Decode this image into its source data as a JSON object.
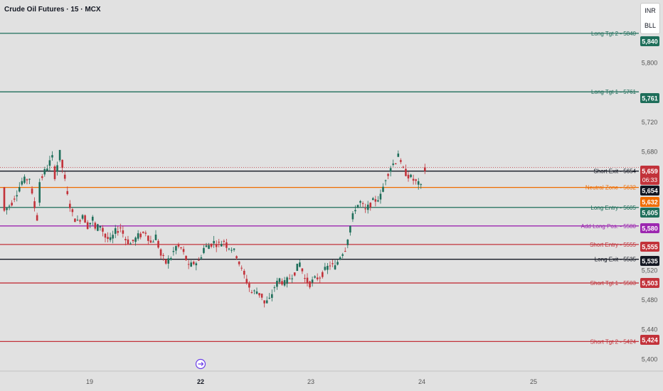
{
  "header": {
    "title": "Crude Oil Futures · 15 · MCX"
  },
  "currency_box": {
    "line1": "INR",
    "line2": "BLL"
  },
  "colors": {
    "up": "#1e6e5a",
    "down": "#c2323a",
    "background": "#e1e1e1"
  },
  "chart_data": {
    "type": "candlestick",
    "title": "Crude Oil Futures · 15 · MCX",
    "ylim": [
      5385,
      5885
    ],
    "y_ticks": [
      "5,400",
      "5,440",
      "5,480",
      "5,520",
      "5,680",
      "5,720",
      "5,800"
    ],
    "x_ticks": [
      "19",
      "22",
      "23",
      "24",
      "25"
    ],
    "x_ticks_bold": [
      "22"
    ],
    "price_path": [
      [
        0,
        5600
      ],
      [
        3,
        5612
      ],
      [
        7,
        5640
      ],
      [
        10,
        5645
      ],
      [
        11,
        5620
      ],
      [
        13,
        5590
      ],
      [
        14,
        5640
      ],
      [
        17,
        5660
      ],
      [
        19,
        5672
      ],
      [
        20,
        5648
      ],
      [
        22,
        5678
      ],
      [
        24,
        5640
      ],
      [
        25,
        5620
      ],
      [
        27,
        5595
      ],
      [
        29,
        5585
      ],
      [
        31,
        5596
      ],
      [
        33,
        5580
      ],
      [
        35,
        5590
      ],
      [
        36,
        5575
      ],
      [
        38,
        5582
      ],
      [
        40,
        5565
      ],
      [
        42,
        5560
      ],
      [
        44,
        5572
      ],
      [
        46,
        5578
      ],
      [
        48,
        5562
      ],
      [
        50,
        5556
      ],
      [
        53,
        5566
      ],
      [
        56,
        5572
      ],
      [
        58,
        5557
      ],
      [
        60,
        5566
      ],
      [
        62,
        5540
      ],
      [
        64,
        5530
      ],
      [
        66,
        5538
      ],
      [
        68,
        5552
      ],
      [
        70,
        5550
      ],
      [
        72,
        5535
      ],
      [
        73,
        5524
      ],
      [
        75,
        5530
      ],
      [
        77,
        5532
      ],
      [
        79,
        5550
      ],
      [
        83,
        5558
      ],
      [
        85,
        5555
      ],
      [
        87,
        5560
      ],
      [
        88,
        5554
      ],
      [
        90,
        5550
      ],
      [
        92,
        5540
      ],
      [
        94,
        5520
      ],
      [
        96,
        5505
      ],
      [
        98,
        5490
      ],
      [
        100,
        5492
      ],
      [
        102,
        5485
      ],
      [
        103,
        5475
      ],
      [
        105,
        5480
      ],
      [
        107,
        5498
      ],
      [
        109,
        5508
      ],
      [
        111,
        5502
      ],
      [
        113,
        5510
      ],
      [
        115,
        5518
      ],
      [
        117,
        5530
      ],
      [
        119,
        5508
      ],
      [
        121,
        5502
      ],
      [
        123,
        5508
      ],
      [
        125,
        5512
      ],
      [
        127,
        5520
      ],
      [
        129,
        5528
      ],
      [
        131,
        5524
      ],
      [
        133,
        5540
      ],
      [
        135,
        5550
      ],
      [
        137,
        5580
      ],
      [
        139,
        5605
      ],
      [
        141,
        5612
      ],
      [
        143,
        5600
      ],
      [
        145,
        5610
      ],
      [
        147,
        5615
      ],
      [
        149,
        5620
      ],
      [
        151,
        5645
      ],
      [
        153,
        5660
      ],
      [
        155,
        5668
      ],
      [
        156,
        5680
      ],
      [
        157,
        5662
      ],
      [
        158,
        5655
      ],
      [
        160,
        5648
      ],
      [
        162,
        5642
      ],
      [
        164,
        5636
      ],
      [
        165,
        5632
      ]
    ],
    "last_bar": {
      "x": 166,
      "open": 5654,
      "close": 5659,
      "high": 5664,
      "low": 5650
    },
    "levels": [
      {
        "price": 5840,
        "label": "Long Tgt 2 - 5840",
        "tag": "5,840",
        "color": "#1e6e5a",
        "text_color": "#1e6e5a",
        "tag_text": "#ffffff"
      },
      {
        "price": 5761,
        "label": "Long Tgt 1 - 5761",
        "tag": "5,761",
        "color": "#1e6e5a",
        "text_color": "#1e6e5a",
        "tag_text": "#ffffff"
      },
      {
        "price": 5654,
        "label": "Short Exit - 5654",
        "tag": "5,654",
        "color": "#131722",
        "text_color": "#131722",
        "tag_text": "#ffffff"
      },
      {
        "price": 5632,
        "label": "Neutral Zone - 5632",
        "tag": "5,632",
        "color": "#ef6c00",
        "text_color": "#ef6c00",
        "tag_text": "#ffffff"
      },
      {
        "price": 5605,
        "label": "Long Entry - 5605",
        "tag": "5,605",
        "color": "#1e6e5a",
        "text_color": "#1e6e5a",
        "tag_text": "#ffffff"
      },
      {
        "price": 5580,
        "label": "Add Long Pos. - 5580",
        "tag": "5,580",
        "color": "#9c27b0",
        "text_color": "#9c27b0",
        "tag_text": "#ffffff"
      },
      {
        "price": 5555,
        "label": "Short Entry - 5555",
        "tag": "5,555",
        "color": "#c2323a",
        "text_color": "#c2323a",
        "tag_text": "#ffffff"
      },
      {
        "price": 5535,
        "label": "Long Exit - 5535",
        "tag": "5,535",
        "color": "#131722",
        "text_color": "#131722",
        "tag_text": "#ffffff"
      },
      {
        "price": 5503,
        "label": "Short Tgt 1 - 5503",
        "tag": "5,503",
        "color": "#c2323a",
        "text_color": "#c2323a",
        "tag_text": "#ffffff"
      },
      {
        "price": 5424,
        "label": "Short Tgt 2 - 5424",
        "tag": "5,424",
        "color": "#c2323a",
        "text_color": "#c2323a",
        "tag_text": "#ffffff"
      }
    ],
    "current_price": {
      "price": 5659,
      "tag": "5,659",
      "countdown": "06:33",
      "color": "#c2323a"
    }
  }
}
